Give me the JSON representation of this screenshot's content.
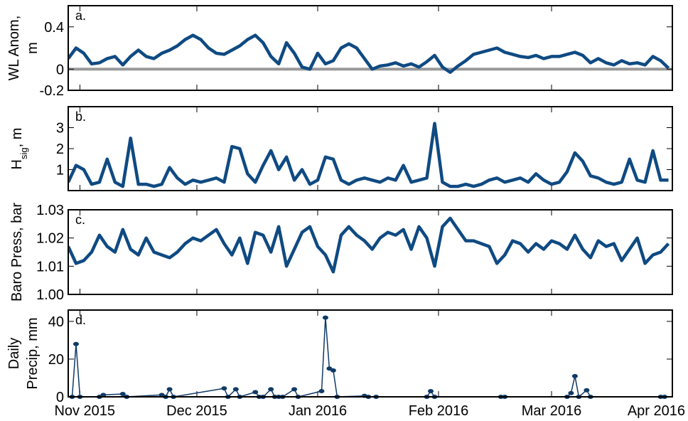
{
  "chart_data": [
    {
      "type": "line",
      "panel_label": "a.",
      "ylabel": [
        "WL Anom,",
        "m"
      ],
      "color": "#0f4a82",
      "zero_line": true,
      "zero_line_color": "#999999",
      "xlim": [
        -3,
        152
      ],
      "xticks": [
        0,
        30,
        61,
        92,
        121,
        152
      ],
      "ylim": [
        -0.2,
        0.6
      ],
      "yticks": [
        -0.2,
        0,
        0.4
      ],
      "x": [
        -3,
        -1,
        1,
        3,
        5,
        7,
        9,
        11,
        13,
        15,
        17,
        19,
        21,
        23,
        25,
        27,
        29,
        31,
        33,
        35,
        37,
        39,
        41,
        43,
        45,
        47,
        49,
        51,
        53,
        55,
        57,
        59,
        61,
        63,
        65,
        67,
        69,
        71,
        73,
        75,
        77,
        79,
        81,
        83,
        85,
        87,
        89,
        91,
        93,
        95,
        97,
        99,
        101,
        103,
        105,
        107,
        109,
        111,
        113,
        115,
        117,
        119,
        121,
        123,
        125,
        127,
        129,
        131,
        133,
        135,
        137,
        139,
        141,
        143,
        145,
        147,
        149,
        151
      ],
      "values": [
        0.1,
        0.2,
        0.15,
        0.05,
        0.06,
        0.1,
        0.12,
        0.04,
        0.12,
        0.18,
        0.12,
        0.1,
        0.15,
        0.18,
        0.22,
        0.28,
        0.32,
        0.28,
        0.2,
        0.15,
        0.14,
        0.18,
        0.22,
        0.28,
        0.32,
        0.25,
        0.12,
        0.05,
        0.25,
        0.15,
        0.02,
        0.0,
        0.15,
        0.05,
        0.08,
        0.2,
        0.24,
        0.2,
        0.1,
        0.0,
        0.03,
        0.04,
        0.06,
        0.03,
        0.05,
        0.02,
        0.07,
        0.13,
        0.02,
        -0.03,
        0.03,
        0.08,
        0.14,
        0.16,
        0.18,
        0.2,
        0.16,
        0.14,
        0.12,
        0.11,
        0.13,
        0.1,
        0.12,
        0.12,
        0.14,
        0.16,
        0.13,
        0.06,
        0.1,
        0.06,
        0.04,
        0.08,
        0.05,
        0.06,
        0.04,
        0.12,
        0.08,
        0.01
      ]
    },
    {
      "type": "line",
      "panel_label": "b.",
      "ylabel": [
        [
          "H",
          "sig",
          ", m"
        ]
      ],
      "color": "#0f4a82",
      "xlim": [
        -3,
        152
      ],
      "xticks": [
        0,
        30,
        61,
        92,
        121,
        152
      ],
      "ylim": [
        0,
        4
      ],
      "yticks": [
        1,
        2,
        3
      ],
      "x": [
        -3,
        -1,
        1,
        3,
        5,
        7,
        9,
        11,
        13,
        15,
        17,
        19,
        21,
        23,
        25,
        27,
        29,
        31,
        33,
        35,
        37,
        39,
        41,
        43,
        45,
        47,
        49,
        51,
        53,
        55,
        57,
        59,
        61,
        63,
        65,
        67,
        69,
        71,
        73,
        75,
        77,
        79,
        81,
        83,
        85,
        87,
        89,
        91,
        93,
        95,
        97,
        99,
        101,
        103,
        105,
        107,
        109,
        111,
        113,
        115,
        117,
        119,
        121,
        123,
        125,
        127,
        129,
        131,
        133,
        135,
        137,
        139,
        141,
        143,
        145,
        147,
        149,
        151
      ],
      "values": [
        0.4,
        1.2,
        1.0,
        0.3,
        0.4,
        1.5,
        0.4,
        0.2,
        2.5,
        0.3,
        0.3,
        0.2,
        0.3,
        1.1,
        0.6,
        0.3,
        0.5,
        0.4,
        0.5,
        0.6,
        0.4,
        2.1,
        2.0,
        0.8,
        0.4,
        1.2,
        1.9,
        1.0,
        1.6,
        0.5,
        1.0,
        0.3,
        0.5,
        1.6,
        1.5,
        0.5,
        0.3,
        0.5,
        0.6,
        0.5,
        0.4,
        0.6,
        0.5,
        1.2,
        0.4,
        0.5,
        0.6,
        3.2,
        0.4,
        0.2,
        0.2,
        0.3,
        0.2,
        0.3,
        0.5,
        0.6,
        0.4,
        0.5,
        0.6,
        0.4,
        0.8,
        0.5,
        0.3,
        0.4,
        0.9,
        1.8,
        1.4,
        0.7,
        0.6,
        0.4,
        0.3,
        0.4,
        1.5,
        0.5,
        0.4,
        1.9,
        0.5,
        0.5
      ]
    },
    {
      "type": "line",
      "panel_label": "c.",
      "ylabel": [
        "Baro Press, bar"
      ],
      "color": "#0f4a82",
      "xlim": [
        -3,
        152
      ],
      "xticks": [
        0,
        30,
        61,
        92,
        121,
        152
      ],
      "ylim": [
        1,
        1.03
      ],
      "yticks": [
        {
          "value": 1,
          "label": "1.00"
        },
        1.01,
        1.02,
        1.03
      ],
      "x": [
        -3,
        -1,
        1,
        3,
        5,
        7,
        9,
        11,
        13,
        15,
        17,
        19,
        21,
        23,
        25,
        27,
        29,
        31,
        33,
        35,
        37,
        39,
        41,
        43,
        45,
        47,
        49,
        51,
        53,
        55,
        57,
        59,
        61,
        63,
        65,
        67,
        69,
        71,
        73,
        75,
        77,
        79,
        81,
        83,
        85,
        87,
        89,
        91,
        93,
        95,
        97,
        99,
        101,
        103,
        105,
        107,
        109,
        111,
        113,
        115,
        117,
        119,
        121,
        123,
        125,
        127,
        129,
        131,
        133,
        135,
        137,
        139,
        141,
        143,
        145,
        147,
        149,
        151
      ],
      "values": [
        1.017,
        1.011,
        1.012,
        1.015,
        1.021,
        1.017,
        1.015,
        1.023,
        1.016,
        1.014,
        1.02,
        1.015,
        1.014,
        1.013,
        1.015,
        1.018,
        1.02,
        1.019,
        1.021,
        1.023,
        1.018,
        1.014,
        1.02,
        1.011,
        1.022,
        1.021,
        1.015,
        1.024,
        1.01,
        1.016,
        1.022,
        1.024,
        1.017,
        1.014,
        1.008,
        1.021,
        1.024,
        1.021,
        1.019,
        1.016,
        1.02,
        1.022,
        1.021,
        1.023,
        1.016,
        1.024,
        1.02,
        1.01,
        1.024,
        1.027,
        1.023,
        1.019,
        1.019,
        1.018,
        1.017,
        1.011,
        1.014,
        1.019,
        1.018,
        1.015,
        1.018,
        1.016,
        1.019,
        1.018,
        1.016,
        1.021,
        1.016,
        1.013,
        1.019,
        1.017,
        1.018,
        1.012,
        1.016,
        1.02,
        1.011,
        1.014,
        1.015,
        1.018
      ]
    },
    {
      "type": "line",
      "marker": "circle",
      "panel_label": "d.",
      "ylabel": [
        "Daily",
        "Precip, mm"
      ],
      "color": "#0f3a66",
      "xlim": [
        -3,
        152
      ],
      "xticks": [
        {
          "value": 0,
          "label": "Nov 2015"
        },
        {
          "value": 30,
          "label": "Dec 2015"
        },
        {
          "value": 61,
          "label": "Jan 2016"
        },
        {
          "value": 92,
          "label": "Feb 2016"
        },
        {
          "value": 121,
          "label": "Mar 2016"
        },
        {
          "value": 152,
          "label": "Apr 2016"
        }
      ],
      "ylim": [
        0,
        46
      ],
      "yticks": [
        0,
        20,
        40
      ],
      "x": [
        -2,
        -1,
        0,
        5,
        6,
        11,
        12,
        21,
        22,
        23,
        24,
        37,
        38,
        40,
        41,
        45,
        46,
        47,
        49,
        50,
        51,
        52,
        55,
        56,
        62,
        63,
        64,
        65,
        66,
        73,
        74,
        76,
        89,
        90,
        91,
        108,
        109,
        125,
        126,
        127,
        128,
        130,
        131,
        149,
        150
      ],
      "values": [
        0,
        28,
        0,
        0,
        1,
        1.5,
        0,
        1,
        0,
        4,
        0,
        4.5,
        0,
        4,
        0,
        2.5,
        0,
        0,
        4,
        0,
        0,
        0,
        4,
        0,
        3,
        42,
        15,
        14,
        0,
        0.5,
        0,
        0,
        0,
        3,
        0,
        0,
        0,
        0,
        2,
        11,
        0,
        3.5,
        0,
        0,
        0
      ]
    }
  ]
}
